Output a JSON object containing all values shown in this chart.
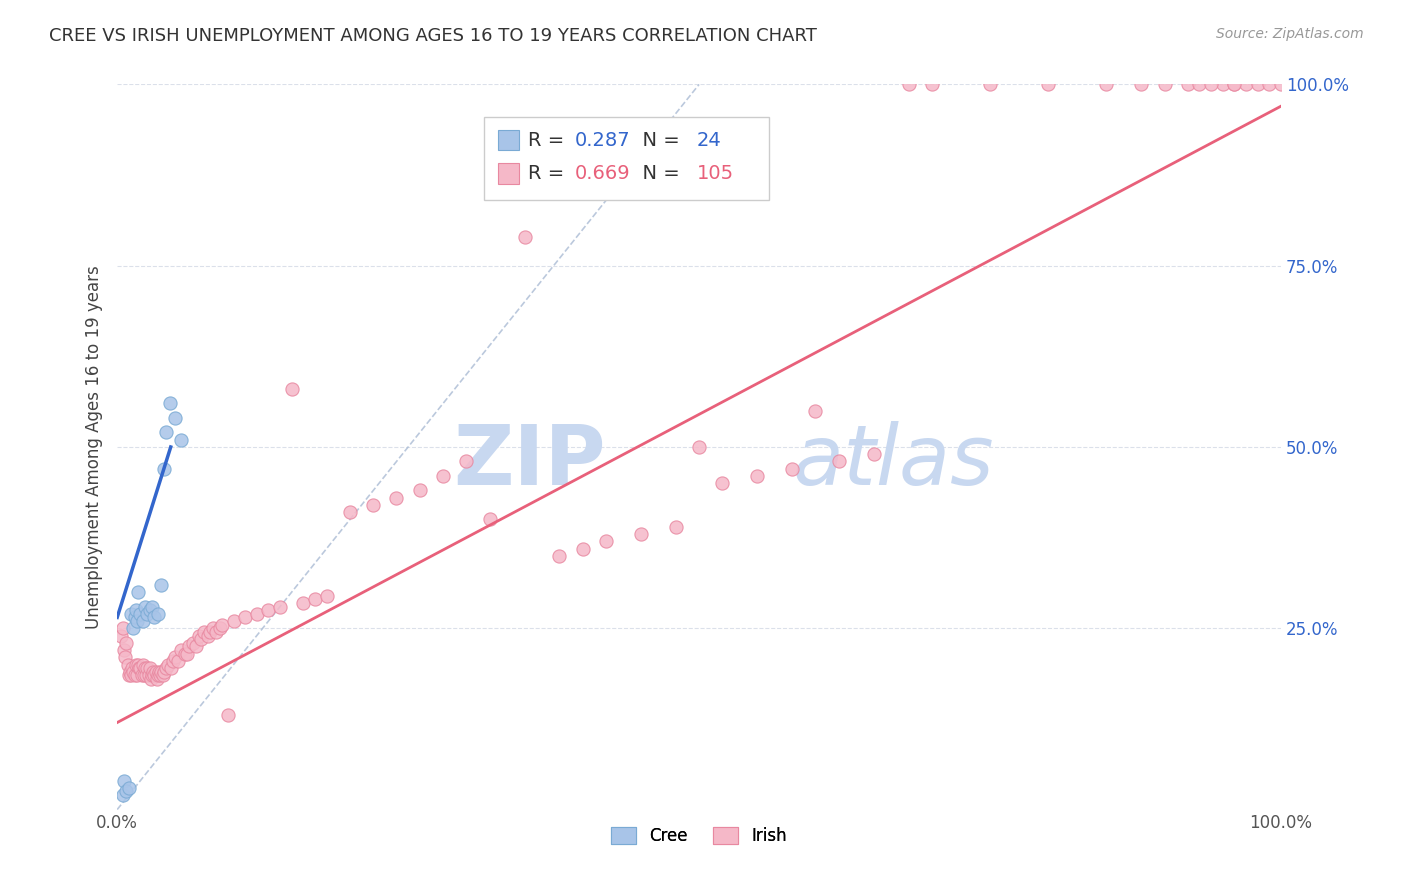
{
  "title": "CREE VS IRISH UNEMPLOYMENT AMONG AGES 16 TO 19 YEARS CORRELATION CHART",
  "source": "Source: ZipAtlas.com",
  "ylabel": "Unemployment Among Ages 16 to 19 years",
  "xlim": [
    0.0,
    1.0
  ],
  "ylim": [
    0.0,
    1.0
  ],
  "x_tick_labels": [
    "0.0%",
    "100.0%"
  ],
  "y_tick_labels": [
    "25.0%",
    "50.0%",
    "75.0%",
    "100.0%"
  ],
  "y_tick_positions": [
    0.25,
    0.5,
    0.75,
    1.0
  ],
  "background_color": "#ffffff",
  "grid_color": "#d8dde8",
  "watermark_zip": "ZIP",
  "watermark_atlas": "atlas",
  "watermark_color": "#c8d8f0",
  "cree_color": "#a8c4e8",
  "cree_edge_color": "#7aaad4",
  "irish_color": "#f5b8c8",
  "irish_edge_color": "#e888a0",
  "cree_line_color": "#3366cc",
  "irish_line_color": "#e8607a",
  "ref_line_color": "#aabbd4",
  "legend_R_cree": "0.287",
  "legend_N_cree": "24",
  "legend_R_irish": "0.669",
  "legend_N_irish": "105",
  "legend_val_color_cree": "#3366cc",
  "legend_val_color_irish": "#e8607a",
  "ytick_color": "#3366cc",
  "cree_points_x": [
    0.005,
    0.006,
    0.008,
    0.01,
    0.012,
    0.014,
    0.015,
    0.016,
    0.017,
    0.018,
    0.02,
    0.022,
    0.024,
    0.026,
    0.028,
    0.03,
    0.032,
    0.035,
    0.038,
    0.04,
    0.042,
    0.045,
    0.05,
    0.055
  ],
  "cree_points_y": [
    0.02,
    0.04,
    0.025,
    0.03,
    0.27,
    0.25,
    0.265,
    0.275,
    0.26,
    0.3,
    0.27,
    0.26,
    0.28,
    0.27,
    0.275,
    0.28,
    0.265,
    0.27,
    0.31,
    0.47,
    0.52,
    0.56,
    0.54,
    0.51
  ],
  "irish_points_x": [
    0.003,
    0.005,
    0.006,
    0.007,
    0.008,
    0.009,
    0.01,
    0.011,
    0.012,
    0.013,
    0.014,
    0.015,
    0.016,
    0.017,
    0.018,
    0.019,
    0.02,
    0.021,
    0.022,
    0.023,
    0.024,
    0.025,
    0.026,
    0.027,
    0.028,
    0.029,
    0.03,
    0.031,
    0.032,
    0.033,
    0.034,
    0.035,
    0.036,
    0.037,
    0.038,
    0.039,
    0.04,
    0.042,
    0.044,
    0.046,
    0.048,
    0.05,
    0.052,
    0.055,
    0.058,
    0.06,
    0.062,
    0.065,
    0.068,
    0.07,
    0.072,
    0.075,
    0.078,
    0.08,
    0.082,
    0.085,
    0.088,
    0.09,
    0.095,
    0.1,
    0.11,
    0.12,
    0.13,
    0.14,
    0.15,
    0.16,
    0.17,
    0.18,
    0.2,
    0.22,
    0.24,
    0.26,
    0.28,
    0.3,
    0.32,
    0.35,
    0.38,
    0.4,
    0.42,
    0.45,
    0.48,
    0.5,
    0.52,
    0.55,
    0.58,
    0.6,
    0.62,
    0.65,
    0.68,
    0.7,
    0.75,
    0.8,
    0.85,
    0.88,
    0.9,
    0.92,
    0.95,
    0.96,
    0.97,
    0.98,
    0.99,
    1.0,
    0.93,
    0.94,
    0.96
  ],
  "irish_points_y": [
    0.24,
    0.25,
    0.22,
    0.21,
    0.23,
    0.2,
    0.185,
    0.19,
    0.185,
    0.195,
    0.19,
    0.185,
    0.2,
    0.185,
    0.2,
    0.195,
    0.195,
    0.185,
    0.2,
    0.185,
    0.195,
    0.185,
    0.195,
    0.185,
    0.195,
    0.18,
    0.185,
    0.19,
    0.185,
    0.19,
    0.18,
    0.185,
    0.19,
    0.185,
    0.19,
    0.185,
    0.19,
    0.195,
    0.2,
    0.195,
    0.205,
    0.21,
    0.205,
    0.22,
    0.215,
    0.215,
    0.225,
    0.23,
    0.225,
    0.24,
    0.235,
    0.245,
    0.24,
    0.245,
    0.25,
    0.245,
    0.25,
    0.255,
    0.13,
    0.26,
    0.265,
    0.27,
    0.275,
    0.28,
    0.58,
    0.285,
    0.29,
    0.295,
    0.41,
    0.42,
    0.43,
    0.44,
    0.46,
    0.48,
    0.4,
    0.79,
    0.35,
    0.36,
    0.37,
    0.38,
    0.39,
    0.5,
    0.45,
    0.46,
    0.47,
    0.55,
    0.48,
    0.49,
    1.0,
    1.0,
    1.0,
    1.0,
    1.0,
    1.0,
    1.0,
    1.0,
    1.0,
    1.0,
    1.0,
    1.0,
    1.0,
    1.0,
    1.0,
    1.0,
    1.0
  ]
}
